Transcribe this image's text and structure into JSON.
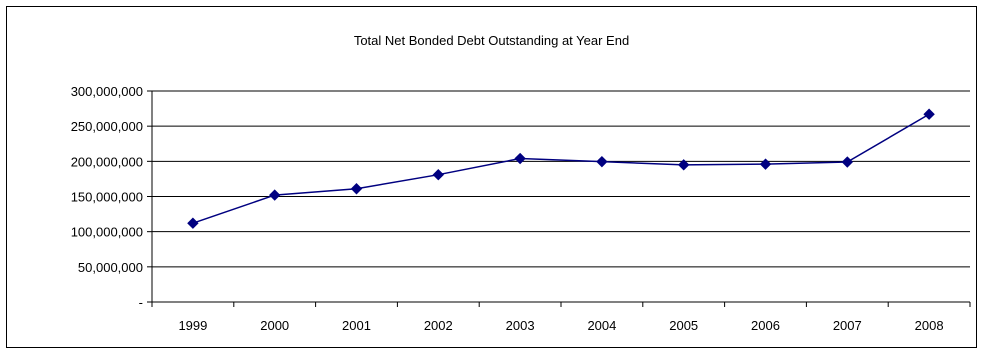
{
  "chart_data": {
    "type": "line",
    "title": "Total Net Bonded Debt Outstanding at Year End",
    "xlabel": "",
    "ylabel": "",
    "categories": [
      "1999",
      "2000",
      "2001",
      "2002",
      "2003",
      "2004",
      "2005",
      "2006",
      "2007",
      "2008"
    ],
    "series": [
      {
        "values": [
          112000000,
          152000000,
          161000000,
          181000000,
          204000000,
          199500000,
          195000000,
          196000000,
          199000000,
          267000000
        ],
        "color": "#000080",
        "marker": "diamond"
      }
    ],
    "ylim": [
      0,
      300000000
    ],
    "yticks": [
      0,
      50000000,
      100000000,
      150000000,
      200000000,
      250000000,
      300000000
    ],
    "ytick_labels": [
      "-",
      "50,000,000",
      "100,000,000",
      "150,000,000",
      "200,000,000",
      "250,000,000",
      "300,000,000"
    ],
    "grid": true,
    "legend": "none"
  }
}
